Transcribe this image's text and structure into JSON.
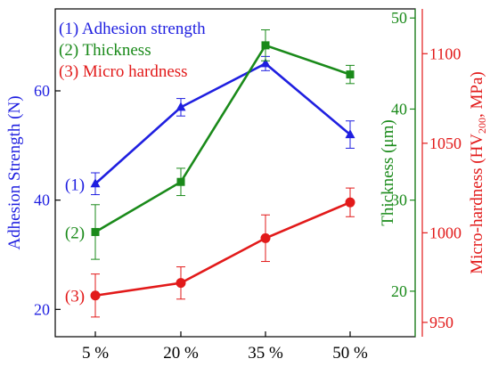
{
  "chart_data": {
    "type": "line",
    "categories": [
      "5 %",
      "20 %",
      "35 %",
      "50 %"
    ],
    "series": [
      {
        "name": "(1) Adhesion strength",
        "tag": "(1)",
        "color": "#1f1fe0",
        "axis": "adhesion",
        "marker": "triangle",
        "values": [
          43,
          57,
          65,
          52
        ],
        "errors": [
          2,
          1.6,
          1.3,
          2.5
        ]
      },
      {
        "name": "(2) Thickness",
        "tag": "(2)",
        "color": "#1a8a1a",
        "axis": "thickness",
        "marker": "square",
        "values": [
          26.5,
          32,
          47,
          43.8
        ],
        "errors": [
          3,
          1.5,
          1.7,
          1
        ]
      },
      {
        "name": "(3) Micro hardness",
        "tag": "(3)",
        "color": "#e21a1a",
        "axis": "hardness",
        "marker": "circle",
        "values": [
          965,
          972,
          997,
          1017
        ],
        "errors": [
          12,
          9,
          13,
          8
        ]
      }
    ],
    "axes": {
      "adhesion": {
        "label": "Adhesion Strength (N)",
        "ylim": [
          15,
          75
        ],
        "ticks": [
          20,
          40,
          60
        ],
        "color": "#1f1fe0"
      },
      "thickness": {
        "label": "Thickness (μm)",
        "ylim": [
          15,
          51
        ],
        "ticks": [
          20,
          30,
          40,
          50
        ],
        "color": "#1a8a1a"
      },
      "hardness": {
        "label_main": "Micro-hardness (HV",
        "label_sub": "200",
        "label_end": ", MPa)",
        "ylim": [
          942,
          1125
        ],
        "ticks": [
          950,
          1000,
          1050,
          1100
        ],
        "color": "#e21a1a"
      }
    },
    "grid": false,
    "legend_position": "top-left"
  }
}
